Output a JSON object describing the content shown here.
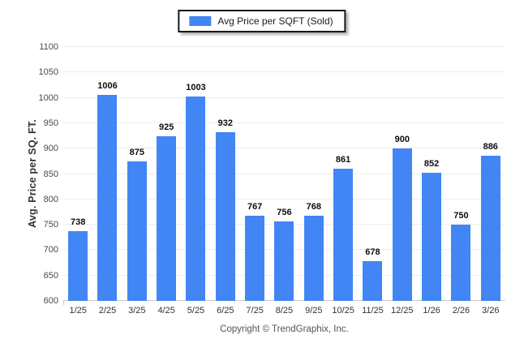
{
  "legend": {
    "label": "Avg Price per SQFT (Sold)",
    "swatch_color": "#4285F4"
  },
  "y_axis": {
    "title": "Avg. Price per SQ. FT."
  },
  "footer": {
    "copyright": "Copyright © TrendGraphix, Inc."
  },
  "colors": {
    "bar": "#4285F4",
    "gridline": "#ededed",
    "baseline": "#c9c9c9",
    "tick_text": "#4a4a4a",
    "value_text": "#0d0d0d",
    "legend_border": "#15181d",
    "footer_text": "#555555"
  },
  "chart_data": {
    "type": "bar",
    "title": "",
    "xlabel": "",
    "ylabel": "Avg. Price per SQ. FT.",
    "categories": [
      "1/25",
      "2/25",
      "3/25",
      "4/25",
      "5/25",
      "6/25",
      "7/25",
      "8/25",
      "9/25",
      "10/25",
      "11/25",
      "12/25",
      "1/26",
      "2/26",
      "3/26"
    ],
    "series": [
      {
        "name": "Avg Price per SQFT (Sold)",
        "values": [
          738,
          1006,
          875,
          925,
          1003,
          932,
          767,
          756,
          768,
          861,
          678,
          900,
          852,
          750,
          886
        ]
      }
    ],
    "ylim": [
      600,
      1100
    ],
    "yticks": [
      600,
      650,
      700,
      750,
      800,
      850,
      900,
      950,
      1000,
      1050,
      1100
    ],
    "grid": true,
    "legend_position": "top-center",
    "data_labels": true,
    "footer": "Copyright © TrendGraphix, Inc."
  }
}
